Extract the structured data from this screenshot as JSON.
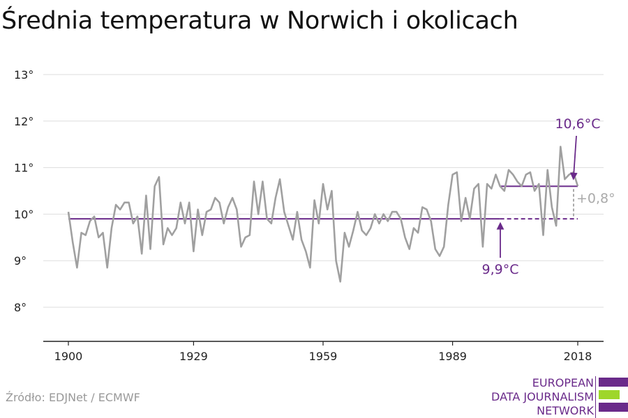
{
  "title": "Średnia temperatura w Norwich i okolicach",
  "source": "Źródło: EDJNet / ECMWF",
  "logo": {
    "lines": [
      "EUROPEAN",
      "DATA JOURNALISM",
      "NETWORK"
    ]
  },
  "colors": {
    "line": "#a0a0a0",
    "accent": "#6a2a8a",
    "delta": "#aaaaaa",
    "logo_green": "#9ed62a",
    "logo_purple": "#6a2a8a"
  },
  "chart_data": {
    "type": "line",
    "title": "Średnia temperatura w Norwich i okolicach",
    "xlabel": "",
    "ylabel": "",
    "xlim": [
      1900,
      2018
    ],
    "ylim": [
      7.3,
      13.3
    ],
    "x_ticks": [
      1900,
      1929,
      1959,
      1989,
      2018
    ],
    "x_tick_labels": [
      "1900",
      "1929",
      "1959",
      "1989",
      "2018"
    ],
    "y_ticks": [
      8,
      9,
      10,
      11,
      12,
      13
    ],
    "y_tick_labels": [
      "8°",
      "9°",
      "10°",
      "11°",
      "12°",
      "13°"
    ],
    "grid": true,
    "series": [
      {
        "x": [
          1900,
          1901,
          1902,
          1903,
          1904,
          1905,
          1906,
          1907,
          1908,
          1909,
          1910,
          1911,
          1912,
          1913,
          1914,
          1915,
          1916,
          1917,
          1918,
          1919,
          1920,
          1921,
          1922,
          1923,
          1924,
          1925,
          1926,
          1927,
          1928,
          1929,
          1930,
          1931,
          1932,
          1933,
          1934,
          1935,
          1936,
          1937,
          1938,
          1939,
          1940,
          1941,
          1942,
          1943,
          1944,
          1945,
          1946,
          1947,
          1948,
          1949,
          1950,
          1951,
          1952,
          1953,
          1954,
          1955,
          1956,
          1957,
          1958,
          1959,
          1960,
          1961,
          1962,
          1963,
          1964,
          1965,
          1966,
          1967,
          1968,
          1969,
          1970,
          1971,
          1972,
          1973,
          1974,
          1975,
          1976,
          1977,
          1978,
          1979,
          1980,
          1981,
          1982,
          1983,
          1984,
          1985,
          1986,
          1987,
          1988,
          1989,
          1990,
          1991,
          1992,
          1993,
          1994,
          1995,
          1996,
          1997,
          1998,
          1999,
          2000,
          2001,
          2002,
          2003,
          2004,
          2005,
          2006,
          2007,
          2008,
          2009,
          2010,
          2011,
          2012,
          2013,
          2014,
          2015,
          2016,
          2017,
          2018
        ],
        "values": [
          10.05,
          9.4,
          8.85,
          9.6,
          9.55,
          9.85,
          9.95,
          9.5,
          9.6,
          8.85,
          9.7,
          10.2,
          10.1,
          10.25,
          10.25,
          9.8,
          9.95,
          9.15,
          10.4,
          9.25,
          10.6,
          10.8,
          9.35,
          9.7,
          9.55,
          9.7,
          10.25,
          9.8,
          10.25,
          9.2,
          10.1,
          9.55,
          10.05,
          10.1,
          10.35,
          10.25,
          9.8,
          10.15,
          10.35,
          10.1,
          9.3,
          9.5,
          9.55,
          10.7,
          10.0,
          10.7,
          9.9,
          9.8,
          10.35,
          10.75,
          10.05,
          9.75,
          9.45,
          10.05,
          9.45,
          9.2,
          8.85,
          10.3,
          9.8,
          10.65,
          10.1,
          10.5,
          9.0,
          8.55,
          9.6,
          9.3,
          9.65,
          10.05,
          9.65,
          9.55,
          9.7,
          10.0,
          9.8,
          10.0,
          9.85,
          10.05,
          10.05,
          9.9,
          9.5,
          9.25,
          9.7,
          9.6,
          10.15,
          10.1,
          9.85,
          9.25,
          9.1,
          9.3,
          10.2,
          10.85,
          10.9,
          9.85,
          10.35,
          9.9,
          10.55,
          10.65,
          9.3,
          10.65,
          10.55,
          10.85,
          10.6,
          10.5,
          10.95,
          10.85,
          10.7,
          10.6,
          10.85,
          10.9,
          10.5,
          10.65,
          9.55,
          10.95,
          10.15,
          9.75,
          11.45,
          10.75,
          10.85,
          10.9,
          10.6
        ]
      }
    ],
    "annotations": {
      "baseline": {
        "value": 9.9,
        "label": "9,9°C",
        "from": 1900,
        "to": 2018
      },
      "recent": {
        "value": 10.6,
        "label": "10,6°C",
        "from": 2000,
        "to": 2018
      },
      "delta": {
        "label": "+0,8°"
      }
    }
  }
}
